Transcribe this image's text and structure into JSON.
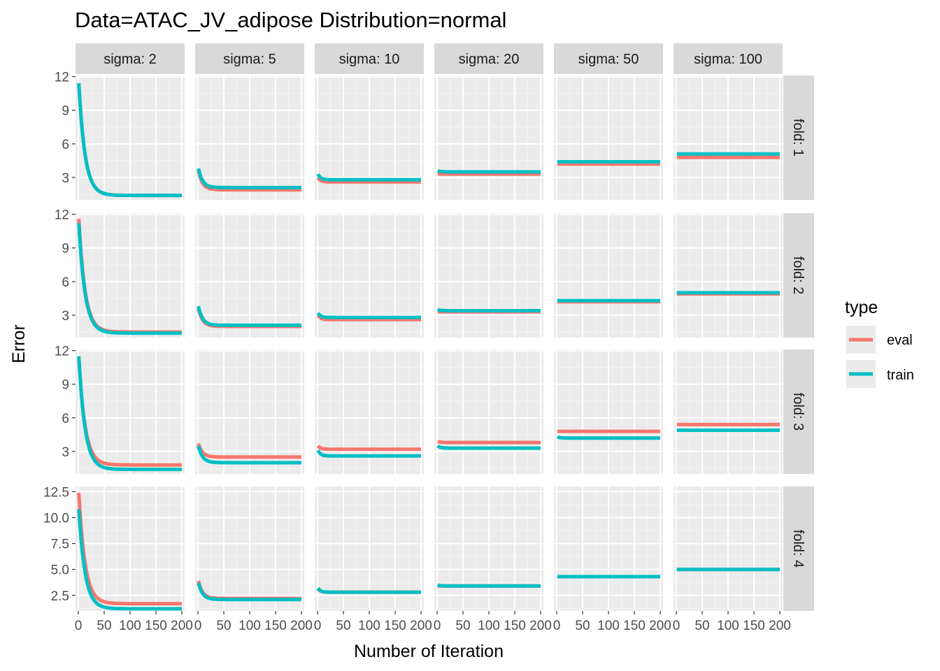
{
  "chart_data": {
    "type": "line",
    "title": "Data=ATAC_JV_adipose   Distribution=normal",
    "xlabel": "Number of Iteration",
    "ylabel": "Error",
    "x_range": [
      0,
      200
    ],
    "x_ticks": [
      0,
      50,
      100,
      150,
      200
    ],
    "x_tick_labels": [
      "0",
      "50",
      "100",
      "150",
      "200"
    ],
    "grid": true,
    "legend": {
      "title": "type",
      "position": "right",
      "entries": [
        {
          "name": "eval",
          "color": "#F8766D"
        },
        {
          "name": "train",
          "color": "#00BFC4"
        }
      ]
    },
    "col_facet_labels": [
      "sigma: 2",
      "sigma: 5",
      "sigma: 10",
      "sigma: 20",
      "sigma: 50",
      "sigma: 100"
    ],
    "row_facets": [
      {
        "label": "fold: 1",
        "ylim": [
          1.0,
          12.1
        ],
        "y_ticks": [
          3,
          6,
          9,
          12
        ],
        "y_tick_labels": [
          "3",
          "6",
          "9",
          "12"
        ]
      },
      {
        "label": "fold: 2",
        "ylim": [
          1.0,
          12.1
        ],
        "y_ticks": [
          3,
          6,
          9,
          12
        ],
        "y_tick_labels": [
          "3",
          "6",
          "9",
          "12"
        ]
      },
      {
        "label": "fold: 3",
        "ylim": [
          1.0,
          12.1
        ],
        "y_ticks": [
          3,
          6,
          9,
          12
        ],
        "y_tick_labels": [
          "3",
          "6",
          "9",
          "12"
        ]
      },
      {
        "label": "fold: 4",
        "ylim": [
          1.0,
          13.0
        ],
        "y_ticks": [
          2.5,
          5.0,
          7.5,
          10.0,
          12.5
        ],
        "y_tick_labels": [
          "2.5",
          "5.0",
          "7.5",
          "10.0",
          "12.5"
        ]
      }
    ],
    "series": [
      {
        "name": "eval",
        "panels": [
          [
            {
              "start": 11.4,
              "end": 1.4,
              "rate": 12
            },
            {
              "start": 3.6,
              "end": 1.9,
              "rate": 8
            },
            {
              "start": 3.0,
              "end": 2.6,
              "rate": 5
            },
            {
              "start": 3.3,
              "end": 3.3,
              "rate": 5
            },
            {
              "start": 4.2,
              "end": 4.2,
              "rate": 5
            },
            {
              "start": 4.8,
              "end": 4.8,
              "rate": 5
            }
          ],
          [
            {
              "start": 11.6,
              "end": 1.5,
              "rate": 12
            },
            {
              "start": 3.6,
              "end": 2.0,
              "rate": 8
            },
            {
              "start": 3.0,
              "end": 2.6,
              "rate": 5
            },
            {
              "start": 3.3,
              "end": 3.3,
              "rate": 5
            },
            {
              "start": 4.2,
              "end": 4.2,
              "rate": 5
            },
            {
              "start": 4.9,
              "end": 4.9,
              "rate": 5
            }
          ],
          [
            {
              "start": 11.4,
              "end": 1.8,
              "rate": 12
            },
            {
              "start": 3.7,
              "end": 2.5,
              "rate": 8
            },
            {
              "start": 3.5,
              "end": 3.2,
              "rate": 5
            },
            {
              "start": 3.9,
              "end": 3.8,
              "rate": 5
            },
            {
              "start": 4.8,
              "end": 4.8,
              "rate": 5
            },
            {
              "start": 5.4,
              "end": 5.4,
              "rate": 5
            }
          ],
          [
            {
              "start": 12.4,
              "end": 1.7,
              "rate": 12
            },
            {
              "start": 3.9,
              "end": 2.2,
              "rate": 8
            },
            {
              "start": 3.1,
              "end": 2.8,
              "rate": 5
            },
            {
              "start": 3.4,
              "end": 3.4,
              "rate": 5
            },
            {
              "start": 4.3,
              "end": 4.3,
              "rate": 5
            },
            {
              "start": 5.0,
              "end": 5.0,
              "rate": 5
            }
          ]
        ]
      },
      {
        "name": "train",
        "panels": [
          [
            {
              "start": 11.4,
              "end": 1.4,
              "rate": 12
            },
            {
              "start": 3.8,
              "end": 2.1,
              "rate": 8
            },
            {
              "start": 3.3,
              "end": 2.8,
              "rate": 5
            },
            {
              "start": 3.6,
              "end": 3.5,
              "rate": 5
            },
            {
              "start": 4.4,
              "end": 4.4,
              "rate": 5
            },
            {
              "start": 5.1,
              "end": 5.1,
              "rate": 5
            }
          ],
          [
            {
              "start": 11.2,
              "end": 1.4,
              "rate": 12
            },
            {
              "start": 3.8,
              "end": 2.1,
              "rate": 8
            },
            {
              "start": 3.2,
              "end": 2.8,
              "rate": 5
            },
            {
              "start": 3.5,
              "end": 3.4,
              "rate": 5
            },
            {
              "start": 4.3,
              "end": 4.3,
              "rate": 5
            },
            {
              "start": 5.0,
              "end": 5.0,
              "rate": 5
            }
          ],
          [
            {
              "start": 11.5,
              "end": 1.4,
              "rate": 12
            },
            {
              "start": 3.5,
              "end": 2.0,
              "rate": 8
            },
            {
              "start": 3.1,
              "end": 2.6,
              "rate": 5
            },
            {
              "start": 3.5,
              "end": 3.3,
              "rate": 5
            },
            {
              "start": 4.3,
              "end": 4.2,
              "rate": 5
            },
            {
              "start": 4.9,
              "end": 4.9,
              "rate": 5
            }
          ],
          [
            {
              "start": 10.8,
              "end": 1.2,
              "rate": 12
            },
            {
              "start": 3.7,
              "end": 2.1,
              "rate": 8
            },
            {
              "start": 3.2,
              "end": 2.8,
              "rate": 5
            },
            {
              "start": 3.5,
              "end": 3.4,
              "rate": 5
            },
            {
              "start": 4.3,
              "end": 4.3,
              "rate": 5
            },
            {
              "start": 5.0,
              "end": 5.0,
              "rate": 5
            }
          ]
        ]
      }
    ]
  }
}
